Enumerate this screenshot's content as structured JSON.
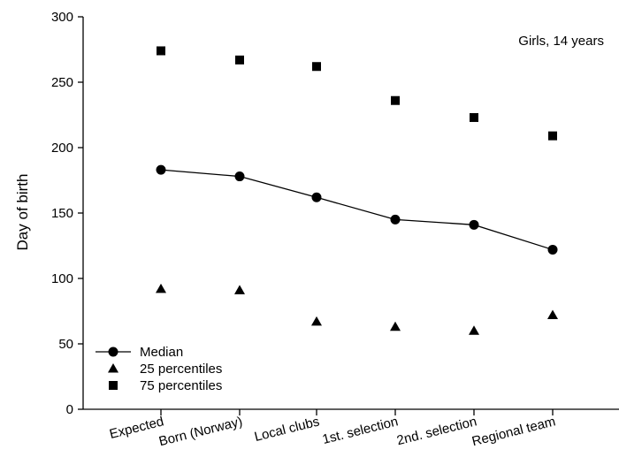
{
  "chart_data": {
    "type": "scatter",
    "title": "",
    "annotation": "Girls, 14 years",
    "xlabel": "",
    "ylabel": "Day of birth",
    "ylim": [
      0,
      300
    ],
    "yticks": [
      0,
      50,
      100,
      150,
      200,
      250,
      300
    ],
    "categories": [
      "Expected",
      "Born (Norway)",
      "Local clubs",
      "1st. selection",
      "2nd. selection",
      "Regional team"
    ],
    "grid": false,
    "legend_position": "bottom-left",
    "series": [
      {
        "name": "Median",
        "marker": "circle",
        "line": true,
        "values": [
          183,
          178,
          162,
          145,
          141,
          122
        ]
      },
      {
        "name": "25 percentiles",
        "marker": "triangle",
        "line": false,
        "values": [
          92,
          91,
          67,
          63,
          60,
          72
        ]
      },
      {
        "name": "75 percentiles",
        "marker": "square",
        "line": false,
        "values": [
          274,
          267,
          262,
          236,
          223,
          209
        ]
      }
    ]
  }
}
